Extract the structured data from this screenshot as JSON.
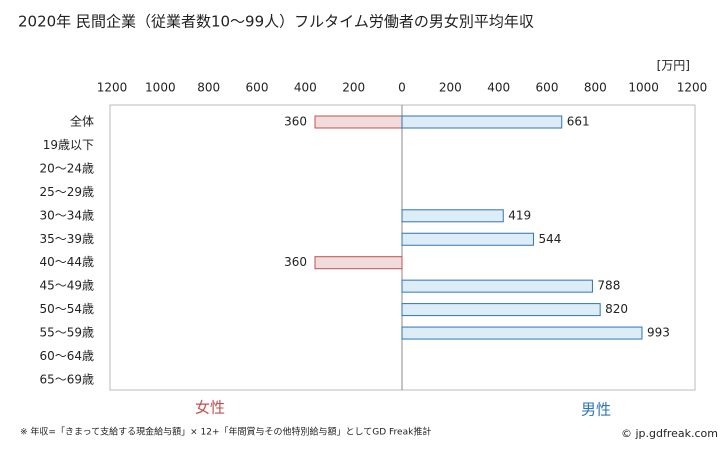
{
  "chart_data": {
    "type": "butterfly-bar",
    "title": "2020年 民間企業（従業者数10～99人）フルタイム労働者の男女別平均年収",
    "unit": "[万円]",
    "categories": [
      "全体",
      "19歳以下",
      "20～24歳",
      "25～29歳",
      "30～34歳",
      "35～39歳",
      "40～44歳",
      "45～49歳",
      "50～54歳",
      "55～59歳",
      "60～64歳",
      "65～69歳"
    ],
    "series": [
      {
        "name": "女性",
        "color": "#c0504d",
        "fill": "#f2dcdb",
        "side": "left",
        "values": [
          360,
          null,
          null,
          null,
          null,
          null,
          360,
          null,
          null,
          null,
          null,
          null
        ]
      },
      {
        "name": "男性",
        "color": "#2e75b6",
        "fill": "#dcedf8",
        "side": "right",
        "values": [
          661,
          null,
          null,
          null,
          419,
          544,
          null,
          788,
          820,
          993,
          null,
          null
        ]
      }
    ],
    "xlim": [
      0,
      1200
    ],
    "xticks_left": [
      200,
      400,
      600,
      800,
      1000,
      1200
    ],
    "xticks_right": [
      0,
      200,
      400,
      600,
      800,
      1000,
      1200
    ],
    "footnote": "※ 年収=「きまって支給する現金給与額」× 12+「年間賞与その他特別給与額」としてGD Freak推計",
    "source": "© jp.gdfreak.com"
  }
}
